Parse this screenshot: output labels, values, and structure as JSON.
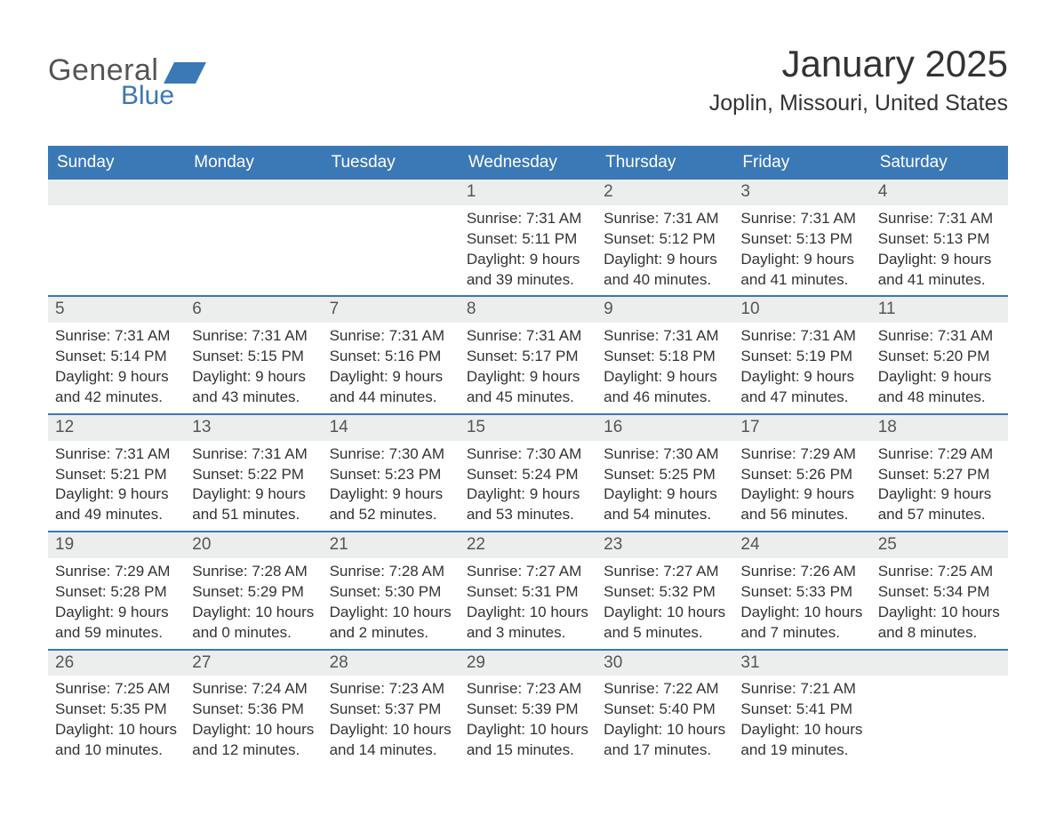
{
  "brand": {
    "text_general": "General",
    "text_blue": "Blue",
    "flag_color": "#3b78b6"
  },
  "colors": {
    "header_bg": "#3b78b6",
    "header_text": "#ffffff",
    "rule": "#3b78b6",
    "daynum_bg": "#eceeee",
    "daynum_text": "#555555",
    "body_text": "#333333",
    "page_bg": "#ffffff"
  },
  "typography": {
    "month_title_pt": 42,
    "location_pt": 25,
    "weekday_pt": 19,
    "daynum_pt": 19,
    "body_pt": 17,
    "font_family": "Arial"
  },
  "title": {
    "month": "January 2025",
    "location": "Joplin, Missouri, United States"
  },
  "weekdays": [
    "Sunday",
    "Monday",
    "Tuesday",
    "Wednesday",
    "Thursday",
    "Friday",
    "Saturday"
  ],
  "labels": {
    "sunrise": "Sunrise:",
    "sunset": "Sunset:",
    "daylight": "Daylight:"
  },
  "weeks": [
    [
      null,
      null,
      null,
      {
        "d": "1",
        "sunrise": "7:31 AM",
        "sunset": "5:11 PM",
        "daylight": "9 hours and 39 minutes."
      },
      {
        "d": "2",
        "sunrise": "7:31 AM",
        "sunset": "5:12 PM",
        "daylight": "9 hours and 40 minutes."
      },
      {
        "d": "3",
        "sunrise": "7:31 AM",
        "sunset": "5:13 PM",
        "daylight": "9 hours and 41 minutes."
      },
      {
        "d": "4",
        "sunrise": "7:31 AM",
        "sunset": "5:13 PM",
        "daylight": "9 hours and 41 minutes."
      }
    ],
    [
      {
        "d": "5",
        "sunrise": "7:31 AM",
        "sunset": "5:14 PM",
        "daylight": "9 hours and 42 minutes."
      },
      {
        "d": "6",
        "sunrise": "7:31 AM",
        "sunset": "5:15 PM",
        "daylight": "9 hours and 43 minutes."
      },
      {
        "d": "7",
        "sunrise": "7:31 AM",
        "sunset": "5:16 PM",
        "daylight": "9 hours and 44 minutes."
      },
      {
        "d": "8",
        "sunrise": "7:31 AM",
        "sunset": "5:17 PM",
        "daylight": "9 hours and 45 minutes."
      },
      {
        "d": "9",
        "sunrise": "7:31 AM",
        "sunset": "5:18 PM",
        "daylight": "9 hours and 46 minutes."
      },
      {
        "d": "10",
        "sunrise": "7:31 AM",
        "sunset": "5:19 PM",
        "daylight": "9 hours and 47 minutes."
      },
      {
        "d": "11",
        "sunrise": "7:31 AM",
        "sunset": "5:20 PM",
        "daylight": "9 hours and 48 minutes."
      }
    ],
    [
      {
        "d": "12",
        "sunrise": "7:31 AM",
        "sunset": "5:21 PM",
        "daylight": "9 hours and 49 minutes."
      },
      {
        "d": "13",
        "sunrise": "7:31 AM",
        "sunset": "5:22 PM",
        "daylight": "9 hours and 51 minutes."
      },
      {
        "d": "14",
        "sunrise": "7:30 AM",
        "sunset": "5:23 PM",
        "daylight": "9 hours and 52 minutes."
      },
      {
        "d": "15",
        "sunrise": "7:30 AM",
        "sunset": "5:24 PM",
        "daylight": "9 hours and 53 minutes."
      },
      {
        "d": "16",
        "sunrise": "7:30 AM",
        "sunset": "5:25 PM",
        "daylight": "9 hours and 54 minutes."
      },
      {
        "d": "17",
        "sunrise": "7:29 AM",
        "sunset": "5:26 PM",
        "daylight": "9 hours and 56 minutes."
      },
      {
        "d": "18",
        "sunrise": "7:29 AM",
        "sunset": "5:27 PM",
        "daylight": "9 hours and 57 minutes."
      }
    ],
    [
      {
        "d": "19",
        "sunrise": "7:29 AM",
        "sunset": "5:28 PM",
        "daylight": "9 hours and 59 minutes."
      },
      {
        "d": "20",
        "sunrise": "7:28 AM",
        "sunset": "5:29 PM",
        "daylight": "10 hours and 0 minutes."
      },
      {
        "d": "21",
        "sunrise": "7:28 AM",
        "sunset": "5:30 PM",
        "daylight": "10 hours and 2 minutes."
      },
      {
        "d": "22",
        "sunrise": "7:27 AM",
        "sunset": "5:31 PM",
        "daylight": "10 hours and 3 minutes."
      },
      {
        "d": "23",
        "sunrise": "7:27 AM",
        "sunset": "5:32 PM",
        "daylight": "10 hours and 5 minutes."
      },
      {
        "d": "24",
        "sunrise": "7:26 AM",
        "sunset": "5:33 PM",
        "daylight": "10 hours and 7 minutes."
      },
      {
        "d": "25",
        "sunrise": "7:25 AM",
        "sunset": "5:34 PM",
        "daylight": "10 hours and 8 minutes."
      }
    ],
    [
      {
        "d": "26",
        "sunrise": "7:25 AM",
        "sunset": "5:35 PM",
        "daylight": "10 hours and 10 minutes."
      },
      {
        "d": "27",
        "sunrise": "7:24 AM",
        "sunset": "5:36 PM",
        "daylight": "10 hours and 12 minutes."
      },
      {
        "d": "28",
        "sunrise": "7:23 AM",
        "sunset": "5:37 PM",
        "daylight": "10 hours and 14 minutes."
      },
      {
        "d": "29",
        "sunrise": "7:23 AM",
        "sunset": "5:39 PM",
        "daylight": "10 hours and 15 minutes."
      },
      {
        "d": "30",
        "sunrise": "7:22 AM",
        "sunset": "5:40 PM",
        "daylight": "10 hours and 17 minutes."
      },
      {
        "d": "31",
        "sunrise": "7:21 AM",
        "sunset": "5:41 PM",
        "daylight": "10 hours and 19 minutes."
      },
      null
    ]
  ]
}
